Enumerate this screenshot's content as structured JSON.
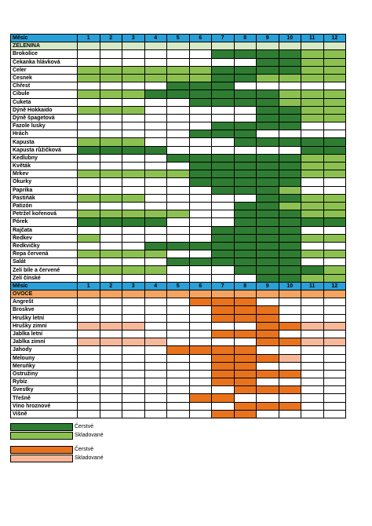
{
  "table": {
    "header_label": "Měsíc",
    "months": [
      "1",
      "2",
      "3",
      "4",
      "5",
      "6",
      "7",
      "8",
      "9",
      "10",
      "11",
      "12"
    ],
    "sections": [
      {
        "label": "ZELENINA",
        "kind": "veg",
        "rows": [
          {
            "name": "Brokolice",
            "cells": "000000DDDDLL"
          },
          {
            "name": "Čekanka hlávková",
            "cells": "00000000DDLL"
          },
          {
            "name": "Celer",
            "cells": "LLLLLLDDDDLL"
          },
          {
            "name": "Česnek",
            "cells": "LLLLLLDDLLLL"
          },
          {
            "name": "Chřest",
            "cells": "0000DDD00000"
          },
          {
            "name": "Cibule",
            "cells": "LLLDDDDDDLLL"
          },
          {
            "name": "Cuketa",
            "cells": "00000DDDDLLL"
          },
          {
            "name": "Dýně Hokkaido",
            "cells": "LLL00000DDLL"
          },
          {
            "name": "Dýně špagetová",
            "cells": "00000000DDLL"
          },
          {
            "name": "Fazole lusky",
            "cells": "000000DDDD00"
          },
          {
            "name": "Hrách",
            "cells": "00000DDD0000"
          },
          {
            "name": "Kapusta",
            "cells": "LLL0000DDDDD"
          },
          {
            "name": "Kapusta růžičková",
            "cells": "DDDD000000DD"
          },
          {
            "name": "Kedlubny",
            "cells": "0000DDDDDDLL"
          },
          {
            "name": "Květák",
            "cells": "00000DDDDDLL"
          },
          {
            "name": "Mrkev",
            "cells": "LLLLLDDDDDLL"
          },
          {
            "name": "Okurky",
            "cells": "00000DDDDD00"
          },
          {
            "name": "Paprika",
            "cells": "000000DDDL00"
          },
          {
            "name": "Pastiňák",
            "cells": "LLL00000DDLL"
          },
          {
            "name": "Patizón",
            "cells": "0000000DDLLL"
          },
          {
            "name": "Petržel kořenová",
            "cells": "LLLLL00DDDLL"
          },
          {
            "name": "Pórek",
            "cells": "DDDD000DDDDD"
          },
          {
            "name": "Rajčata",
            "cells": "000000DDDD00"
          },
          {
            "name": "Ředkev",
            "cells": "L00000DDDDLL"
          },
          {
            "name": "Ředkvičky",
            "cells": "000DDDDDDD00"
          },
          {
            "name": "Řepa červená",
            "cells": "LLLL00DDDDLL"
          },
          {
            "name": "Salát",
            "cells": "0000DDDDDD00"
          },
          {
            "name": "Zelí bíle a červené",
            "cells": "LLLL000DDDDL"
          },
          {
            "name": "Zelí čínské",
            "cells": "00000000DDLL"
          }
        ]
      },
      {
        "label": "OVOCE",
        "kind": "fruit",
        "rows": [
          {
            "name": "Angrešt",
            "cells": "00000OOO0000"
          },
          {
            "name": "Broskve",
            "cells": "000000OOO000"
          },
          {
            "name": "Hrušky letní",
            "cells": "000000OOO000"
          },
          {
            "name": "Hrušky zimní",
            "cells": "PPP00000OOPP"
          },
          {
            "name": "Jablka letní",
            "cells": "000000OOO000"
          },
          {
            "name": "Jablka zimní",
            "cells": "PPPP0000OOPP"
          },
          {
            "name": "Jahody",
            "cells": "0000OOOO0000"
          },
          {
            "name": "Melouny",
            "cells": "000000OOOP00"
          },
          {
            "name": "Meruňky",
            "cells": "000000OO0000"
          },
          {
            "name": "Ostružiny",
            "cells": "000000OOOO00"
          },
          {
            "name": "Rybíz",
            "cells": "000000OO0000"
          },
          {
            "name": "Švestky",
            "cells": "0000000OOO00"
          },
          {
            "name": "Třešně",
            "cells": "00000OO00000"
          },
          {
            "name": "Víno hroznové",
            "cells": "0000000OOO00"
          },
          {
            "name": "Višně",
            "cells": "000000OO0000"
          }
        ]
      }
    ]
  },
  "legend": {
    "veg_fresh": "Čerstvé",
    "veg_stored": "Skladované",
    "fruit_fresh": "Čerstvé",
    "fruit_stored": "Skladované"
  },
  "colors": {
    "header_blue": "#2aa0d8",
    "veg_fresh": "#2e7d32",
    "veg_stored": "#8cc152",
    "fruit_fresh": "#e8731c",
    "fruit_stored": "#f7b89a"
  }
}
